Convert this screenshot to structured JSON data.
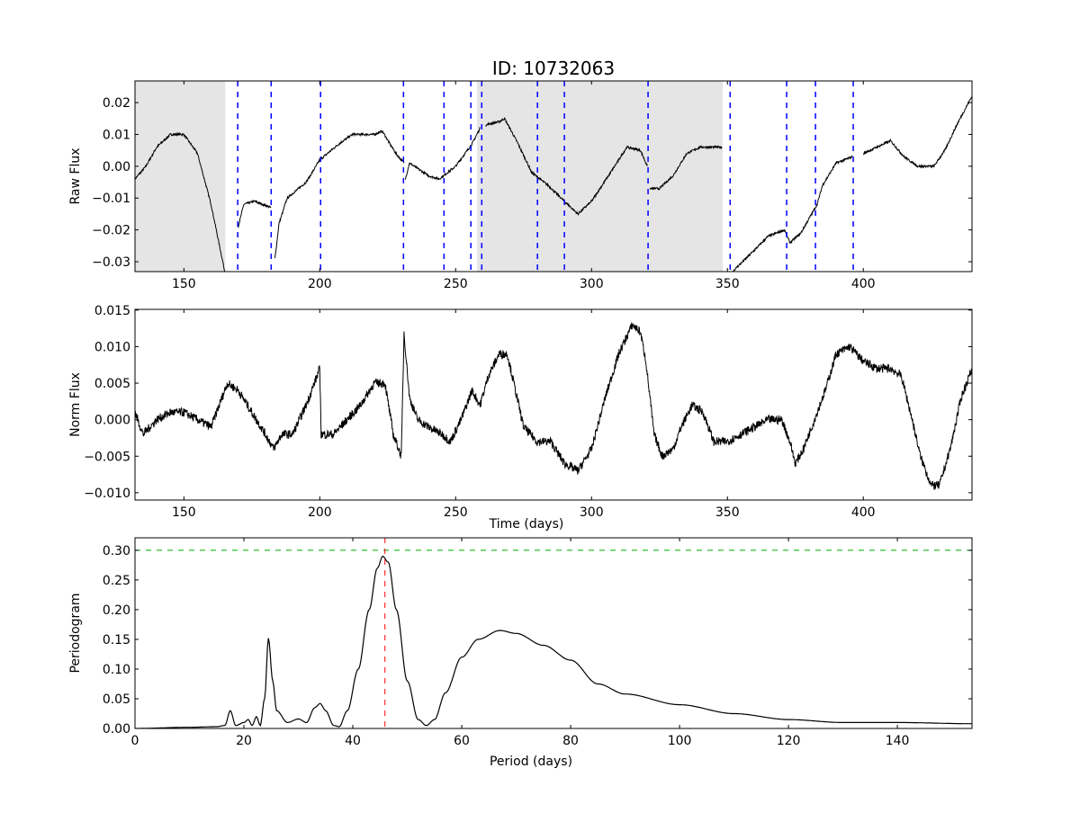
{
  "chart_data": [
    {
      "type": "line",
      "title": "ID: 10732063",
      "xlabel": "",
      "ylabel": "Raw Flux",
      "xlim": [
        132,
        440
      ],
      "ylim": [
        -0.0331,
        0.0268
      ],
      "xticks": [
        150,
        200,
        250,
        300,
        350,
        400
      ],
      "yticks": [
        0.02,
        0.01,
        0.0,
        -0.01,
        -0.02,
        -0.03
      ],
      "ytick_labels": [
        "0.02",
        "0.01",
        "0.00",
        "−0.01",
        "−0.02",
        "−0.03"
      ],
      "shaded_ranges": [
        [
          132,
          165.2
        ],
        [
          257.9,
          348.3
        ]
      ],
      "shade_color": "#e5e5e5",
      "vlines": [
        169.8,
        182.1,
        200.3,
        230.8,
        245.7,
        255.6,
        259.6,
        280.1,
        290.0,
        320.8,
        351.0,
        371.8,
        382.4,
        396.3
      ],
      "vline_color": "#0000ff",
      "line_color": "#000000",
      "segments": [
        [
          [
            132,
            -0.004
          ],
          [
            136,
            0.0
          ],
          [
            140,
            0.006
          ],
          [
            145,
            0.01
          ],
          [
            150,
            0.01
          ],
          [
            155,
            0.004
          ],
          [
            160,
            -0.012
          ],
          [
            165,
            -0.033
          ]
        ],
        [
          [
            170,
            -0.019
          ],
          [
            172,
            -0.012
          ],
          [
            176,
            -0.011
          ],
          [
            182,
            -0.013
          ]
        ],
        [
          [
            183.5,
            -0.029
          ],
          [
            185,
            -0.018
          ],
          [
            188,
            -0.01
          ],
          [
            195,
            -0.005
          ],
          [
            200,
            0.002
          ],
          [
            207,
            0.007
          ],
          [
            212,
            0.01
          ],
          [
            220,
            0.01
          ],
          [
            223,
            0.011
          ],
          [
            228,
            0.004
          ],
          [
            231,
            0.001
          ]
        ],
        [
          [
            231.5,
            -0.004
          ],
          [
            233,
            0.001
          ],
          [
            240,
            -0.003
          ],
          [
            244,
            -0.004
          ],
          [
            250,
            0.0
          ],
          [
            256,
            0.007
          ],
          [
            259,
            0.012
          ]
        ],
        [
          [
            261,
            0.013
          ],
          [
            266,
            0.014
          ],
          [
            268,
            0.015
          ],
          [
            273,
            0.007
          ],
          [
            278,
            -0.002
          ],
          [
            284,
            -0.006
          ],
          [
            290,
            -0.011
          ],
          [
            295,
            -0.015
          ],
          [
            300,
            -0.011
          ],
          [
            307,
            -0.002
          ],
          [
            313,
            0.006
          ],
          [
            318,
            0.005
          ],
          [
            320.5,
            0.0
          ]
        ],
        [
          [
            321.5,
            -0.007
          ],
          [
            325,
            -0.007
          ],
          [
            330,
            -0.003
          ],
          [
            335,
            0.004
          ],
          [
            340,
            0.006
          ],
          [
            348,
            0.006
          ]
        ],
        [
          [
            352,
            -0.033
          ],
          [
            358,
            -0.028
          ],
          [
            365,
            -0.022
          ],
          [
            371,
            -0.02
          ],
          [
            373,
            -0.024
          ],
          [
            377,
            -0.021
          ],
          [
            383,
            -0.012
          ],
          [
            385,
            -0.006
          ],
          [
            390,
            0.001
          ],
          [
            396,
            0.003
          ]
        ],
        [
          [
            400,
            0.004
          ],
          [
            405,
            0.006
          ],
          [
            410,
            0.008
          ],
          [
            415,
            0.003
          ],
          [
            420,
            0.0
          ],
          [
            426,
            0.0
          ],
          [
            430,
            0.005
          ],
          [
            435,
            0.014
          ],
          [
            440,
            0.022
          ]
        ]
      ]
    },
    {
      "type": "line",
      "xlabel": "Time (days)",
      "ylabel": "Norm Flux",
      "xlim": [
        132,
        440
      ],
      "ylim": [
        -0.011,
        0.0151
      ],
      "xticks": [
        150,
        200,
        250,
        300,
        350,
        400
      ],
      "yticks": [
        0.015,
        0.01,
        0.005,
        0.0,
        -0.005,
        -0.01
      ],
      "ytick_labels": [
        "0.015",
        "0.010",
        "0.005",
        "0.000",
        "−0.005",
        "−0.010"
      ],
      "line_color": "#000000",
      "segments": [
        [
          [
            132,
            0.001
          ],
          [
            135,
            -0.002
          ],
          [
            140,
            0.0
          ],
          [
            145,
            0.001
          ],
          [
            150,
            0.001
          ],
          [
            155,
            0.0
          ],
          [
            160,
            -0.001
          ],
          [
            163,
            0.002
          ],
          [
            166,
            0.005
          ],
          [
            170,
            0.004
          ],
          [
            175,
            0.001
          ],
          [
            180,
            -0.002
          ],
          [
            183,
            -0.004
          ],
          [
            186,
            -0.002
          ],
          [
            190,
            -0.002
          ],
          [
            195,
            0.002
          ],
          [
            199,
            0.006
          ],
          [
            200,
            0.007
          ],
          [
            200.5,
            -0.002
          ],
          [
            205,
            -0.002
          ],
          [
            210,
            0.0
          ],
          [
            215,
            0.002
          ],
          [
            220,
            0.005
          ],
          [
            224,
            0.005
          ],
          [
            227,
            -0.002
          ],
          [
            230,
            -0.005
          ],
          [
            231,
            0.012
          ],
          [
            233,
            0.003
          ],
          [
            236,
            0.0
          ],
          [
            240,
            -0.001
          ],
          [
            245,
            -0.002
          ],
          [
            248,
            -0.003
          ],
          [
            252,
            0.0
          ],
          [
            256,
            0.004
          ],
          [
            259,
            0.002
          ],
          [
            262,
            0.006
          ],
          [
            266,
            0.009
          ],
          [
            269,
            0.009
          ],
          [
            272,
            0.004
          ],
          [
            275,
            -0.001
          ],
          [
            280,
            -0.003
          ],
          [
            285,
            -0.003
          ],
          [
            290,
            -0.006
          ],
          [
            295,
            -0.007
          ],
          [
            300,
            -0.004
          ],
          [
            305,
            0.003
          ],
          [
            310,
            0.009
          ],
          [
            315,
            0.013
          ],
          [
            318,
            0.012
          ],
          [
            320,
            0.008
          ],
          [
            323,
            -0.002
          ],
          [
            326,
            -0.005
          ],
          [
            330,
            -0.004
          ],
          [
            333,
            -0.001
          ],
          [
            337,
            0.002
          ],
          [
            341,
            0.001
          ],
          [
            345,
            -0.003
          ],
          [
            350,
            -0.003
          ],
          [
            355,
            -0.002
          ],
          [
            360,
            -0.001
          ],
          [
            365,
            0.0
          ],
          [
            370,
            0.0
          ],
          [
            373,
            -0.003
          ],
          [
            375,
            -0.006
          ],
          [
            378,
            -0.004
          ],
          [
            382,
            0.0
          ],
          [
            386,
            0.004
          ],
          [
            390,
            0.009
          ],
          [
            395,
            0.01
          ],
          [
            400,
            0.008
          ],
          [
            405,
            0.007
          ],
          [
            410,
            0.007
          ],
          [
            414,
            0.006
          ],
          [
            418,
            0.0
          ],
          [
            421,
            -0.005
          ],
          [
            425,
            -0.009
          ],
          [
            428,
            -0.009
          ],
          [
            432,
            -0.004
          ],
          [
            436,
            0.003
          ],
          [
            440,
            0.007
          ]
        ]
      ]
    },
    {
      "type": "line",
      "xlabel": "Period (days)",
      "ylabel": "Periodogram",
      "xlim": [
        0,
        153.7
      ],
      "ylim": [
        0,
        0.321
      ],
      "xticks": [
        0,
        20,
        40,
        60,
        80,
        100,
        120,
        140
      ],
      "yticks": [
        0.3,
        0.25,
        0.2,
        0.15,
        0.1,
        0.05,
        0.0
      ],
      "ytick_labels": [
        "0.30",
        "0.25",
        "0.20",
        "0.15",
        "0.10",
        "0.05",
        "0.00"
      ],
      "hline": 0.3,
      "hline_color": "#00aa00",
      "peak_vline": 45.9,
      "peak_color": "#ff0000",
      "line_color": "#000000",
      "segments": [
        [
          [
            0,
            0
          ],
          [
            10,
            0.002
          ],
          [
            15,
            0.003
          ],
          [
            16.5,
            0.005
          ],
          [
            17.5,
            0.03
          ],
          [
            18.5,
            0.005
          ],
          [
            20,
            0.01
          ],
          [
            20.8,
            0.015
          ],
          [
            21.5,
            0.005
          ],
          [
            22.3,
            0.02
          ],
          [
            23,
            0.005
          ],
          [
            23.8,
            0.05
          ],
          [
            24.5,
            0.152
          ],
          [
            25.3,
            0.08
          ],
          [
            26,
            0.03
          ],
          [
            28,
            0.01
          ],
          [
            30,
            0.016
          ],
          [
            31.5,
            0.01
          ],
          [
            33,
            0.035
          ],
          [
            34,
            0.042
          ],
          [
            35,
            0.03
          ],
          [
            36.5,
            0.005
          ],
          [
            37.5,
            0.003
          ],
          [
            39,
            0.03
          ],
          [
            41,
            0.1
          ],
          [
            43,
            0.2
          ],
          [
            44.5,
            0.27
          ],
          [
            45.5,
            0.29
          ],
          [
            46.5,
            0.28
          ],
          [
            48,
            0.2
          ],
          [
            50,
            0.08
          ],
          [
            52,
            0.015
          ],
          [
            53.5,
            0.005
          ],
          [
            55,
            0.015
          ],
          [
            57,
            0.06
          ],
          [
            60,
            0.12
          ],
          [
            63,
            0.15
          ],
          [
            67,
            0.165
          ],
          [
            70,
            0.16
          ],
          [
            75,
            0.14
          ],
          [
            80,
            0.115
          ],
          [
            85,
            0.075
          ],
          [
            90,
            0.058
          ],
          [
            100,
            0.04
          ],
          [
            110,
            0.025
          ],
          [
            120,
            0.015
          ],
          [
            130,
            0.01
          ],
          [
            140,
            0.01
          ],
          [
            153.7,
            0.008
          ]
        ]
      ]
    }
  ]
}
